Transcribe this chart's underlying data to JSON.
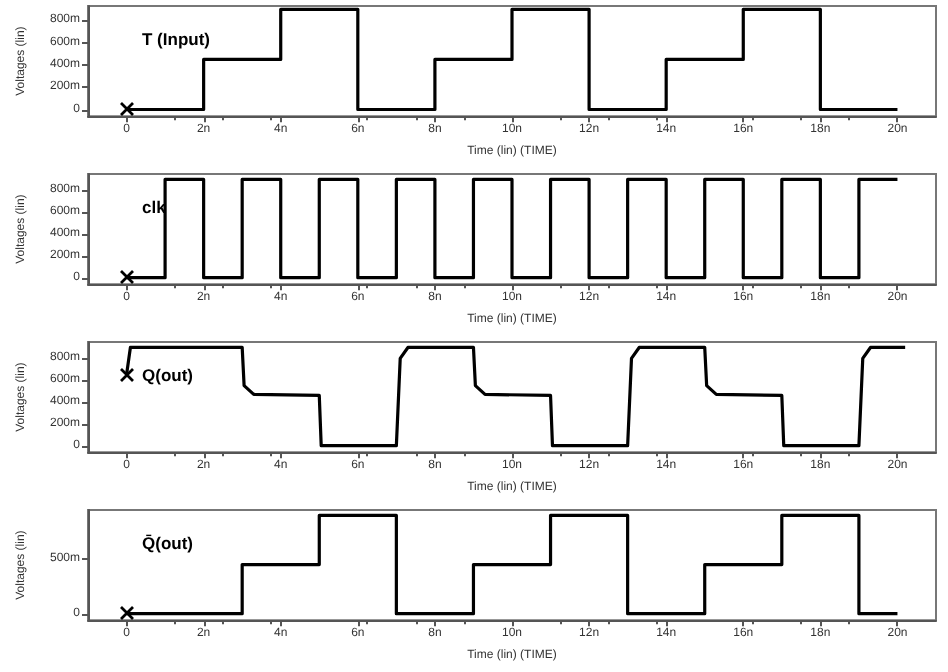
{
  "chart_data": [
    {
      "type": "step",
      "title": "T (Input)",
      "xlabel": "Time (lin) (TIME)",
      "ylabel": "Voltages (lin)",
      "grid": false,
      "marker": "none",
      "line_style": "solid",
      "xlim": [
        -1,
        21
      ],
      "xticks": [
        {
          "value": 0,
          "label": "0"
        },
        {
          "value": 2,
          "label": "2n"
        },
        {
          "value": 4,
          "label": "4n"
        },
        {
          "value": 6,
          "label": "6n"
        },
        {
          "value": 8,
          "label": "8n"
        },
        {
          "value": 10,
          "label": "10n"
        },
        {
          "value": 12,
          "label": "12n"
        },
        {
          "value": 14,
          "label": "14n"
        },
        {
          "value": 16,
          "label": "16n"
        },
        {
          "value": 18,
          "label": "18n"
        },
        {
          "value": 20,
          "label": "20n"
        }
      ],
      "ylim": [
        -60,
        930
      ],
      "yticks": [
        {
          "value": 0,
          "label": "0"
        },
        {
          "value": 200,
          "label": "200m"
        },
        {
          "value": 400,
          "label": "400m"
        },
        {
          "value": 600,
          "label": "600m"
        },
        {
          "value": 800,
          "label": "800m"
        }
      ],
      "series": [
        {
          "color": "#000000",
          "x": [
            0,
            2,
            4,
            6,
            8,
            10,
            12,
            14,
            16,
            18,
            20
          ],
          "values": [
            0,
            450,
            900,
            0,
            450,
            900,
            0,
            450,
            900,
            0,
            0
          ]
        }
      ]
    },
    {
      "type": "step",
      "title": "clk",
      "xlabel": "Time (lin) (TIME)",
      "ylabel": "Voltages (lin)",
      "grid": false,
      "marker": "none",
      "line_style": "solid",
      "xlim": [
        -1,
        21
      ],
      "xticks": [
        {
          "value": 0,
          "label": "0"
        },
        {
          "value": 2,
          "label": "2n"
        },
        {
          "value": 4,
          "label": "4n"
        },
        {
          "value": 6,
          "label": "6n"
        },
        {
          "value": 8,
          "label": "8n"
        },
        {
          "value": 10,
          "label": "10n"
        },
        {
          "value": 12,
          "label": "12n"
        },
        {
          "value": 14,
          "label": "14n"
        },
        {
          "value": 16,
          "label": "16n"
        },
        {
          "value": 18,
          "label": "18n"
        },
        {
          "value": 20,
          "label": "20n"
        }
      ],
      "ylim": [
        -60,
        950
      ],
      "yticks": [
        {
          "value": 0,
          "label": "0"
        },
        {
          "value": 200,
          "label": "200m"
        },
        {
          "value": 400,
          "label": "400m"
        },
        {
          "value": 600,
          "label": "600m"
        },
        {
          "value": 800,
          "label": "800m"
        }
      ],
      "series": [
        {
          "color": "#000000",
          "x": [
            0,
            1,
            2,
            3,
            4,
            5,
            6,
            7,
            8,
            9,
            10,
            11,
            12,
            13,
            14,
            15,
            16,
            17,
            18,
            19,
            20
          ],
          "values": [
            0,
            900,
            0,
            900,
            0,
            900,
            0,
            900,
            0,
            900,
            0,
            900,
            0,
            900,
            0,
            900,
            0,
            900,
            0,
            900,
            900
          ]
        }
      ]
    },
    {
      "type": "line",
      "title": "Q(out)",
      "xlabel": "Time (lin) (TIME)",
      "ylabel": "Voltages (lin)",
      "grid": false,
      "marker": "none",
      "line_style": "solid",
      "xlim": [
        -1,
        21
      ],
      "xticks": [
        {
          "value": 0,
          "label": "0"
        },
        {
          "value": 2,
          "label": "2n"
        },
        {
          "value": 4,
          "label": "4n"
        },
        {
          "value": 6,
          "label": "6n"
        },
        {
          "value": 8,
          "label": "8n"
        },
        {
          "value": 10,
          "label": "10n"
        },
        {
          "value": 12,
          "label": "12n"
        },
        {
          "value": 14,
          "label": "14n"
        },
        {
          "value": 16,
          "label": "16n"
        },
        {
          "value": 18,
          "label": "18n"
        },
        {
          "value": 20,
          "label": "20n"
        }
      ],
      "ylim": [
        -60,
        950
      ],
      "yticks": [
        {
          "value": 0,
          "label": "0"
        },
        {
          "value": 200,
          "label": "200m"
        },
        {
          "value": 400,
          "label": "400m"
        },
        {
          "value": 600,
          "label": "600m"
        },
        {
          "value": 800,
          "label": "800m"
        }
      ],
      "series": [
        {
          "color": "#000000",
          "x": [
            0,
            0.1,
            3,
            3.05,
            3.3,
            5,
            5.05,
            7,
            7.1,
            7.3,
            9,
            9.05,
            9.3,
            11,
            11.05,
            13,
            13.1,
            13.3,
            15,
            15.05,
            15.3,
            17,
            17.05,
            19,
            19.1,
            19.3,
            20.2
          ],
          "values": [
            650,
            900,
            900,
            550,
            470,
            460,
            0,
            0,
            800,
            900,
            900,
            550,
            470,
            460,
            0,
            0,
            800,
            900,
            900,
            550,
            470,
            460,
            0,
            0,
            800,
            900,
            900
          ]
        }
      ]
    },
    {
      "type": "step",
      "title": "Q̄(out)",
      "xlabel": "Time (lin) (TIME)",
      "ylabel": "Voltages (lin)",
      "grid": false,
      "marker": "none",
      "line_style": "solid",
      "xlim": [
        -1,
        21
      ],
      "xticks": [
        {
          "value": 0,
          "label": "0"
        },
        {
          "value": 2,
          "label": "2n"
        },
        {
          "value": 4,
          "label": "4n"
        },
        {
          "value": 6,
          "label": "6n"
        },
        {
          "value": 8,
          "label": "8n"
        },
        {
          "value": 10,
          "label": "10n"
        },
        {
          "value": 12,
          "label": "12n"
        },
        {
          "value": 14,
          "label": "14n"
        },
        {
          "value": 16,
          "label": "16n"
        },
        {
          "value": 18,
          "label": "18n"
        },
        {
          "value": 20,
          "label": "20n"
        }
      ],
      "ylim": [
        -60,
        950
      ],
      "yticks": [
        {
          "value": 0,
          "label": "0"
        },
        {
          "value": 500,
          "label": "500m"
        }
      ],
      "series": [
        {
          "color": "#000000",
          "x": [
            0,
            3,
            5,
            7,
            9,
            11,
            13,
            15,
            17,
            19,
            20
          ],
          "values": [
            0,
            450,
            900,
            0,
            450,
            900,
            0,
            450,
            900,
            0,
            0
          ]
        }
      ]
    }
  ]
}
